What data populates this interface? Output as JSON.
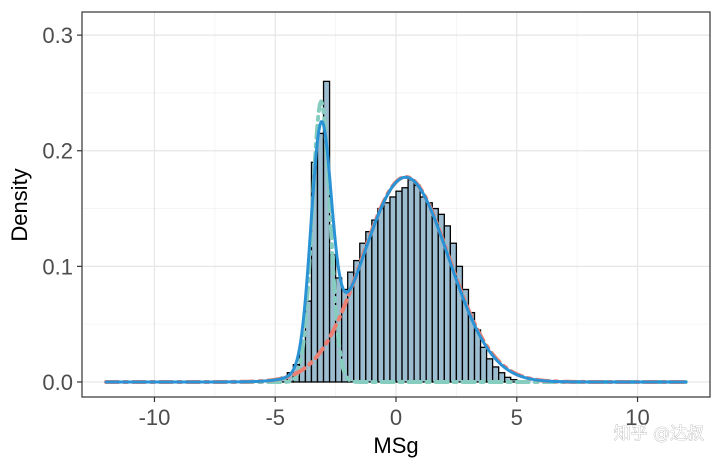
{
  "chart_data": {
    "type": "histogram",
    "title": "",
    "xlabel": "MSg",
    "ylabel": "Density",
    "xlim": [
      -13,
      13
    ],
    "ylim": [
      -0.013,
      0.32
    ],
    "x_ticks": [
      -10,
      -5,
      0,
      5,
      10
    ],
    "x_tick_labels": [
      "-10",
      "-5",
      "0",
      "5",
      "10"
    ],
    "y_ticks": [
      0.0,
      0.1,
      0.2,
      0.3
    ],
    "y_tick_labels": [
      "0.0",
      "0.1",
      "0.2",
      "0.3"
    ],
    "grid": true,
    "histogram": {
      "bin_width": 0.25,
      "fill_color": "#9cbcd0",
      "edge_color": "#000000",
      "bins": [
        {
          "x": -5.0,
          "density": 0.002
        },
        {
          "x": -4.75,
          "density": 0.004
        },
        {
          "x": -4.5,
          "density": 0.008
        },
        {
          "x": -4.25,
          "density": 0.015
        },
        {
          "x": -4.0,
          "density": 0.03
        },
        {
          "x": -3.75,
          "density": 0.07
        },
        {
          "x": -3.5,
          "density": 0.19
        },
        {
          "x": -3.25,
          "density": 0.215
        },
        {
          "x": -3.0,
          "density": 0.26
        },
        {
          "x": -2.75,
          "density": 0.11
        },
        {
          "x": -2.5,
          "density": 0.09
        },
        {
          "x": -2.25,
          "density": 0.08
        },
        {
          "x": -2.0,
          "density": 0.095
        },
        {
          "x": -1.75,
          "density": 0.105
        },
        {
          "x": -1.5,
          "density": 0.12
        },
        {
          "x": -1.25,
          "density": 0.13
        },
        {
          "x": -1.0,
          "density": 0.14
        },
        {
          "x": -0.75,
          "density": 0.15
        },
        {
          "x": -0.5,
          "density": 0.155
        },
        {
          "x": -0.25,
          "density": 0.16
        },
        {
          "x": 0.0,
          "density": 0.165
        },
        {
          "x": 0.25,
          "density": 0.168
        },
        {
          "x": 0.5,
          "density": 0.175
        },
        {
          "x": 0.75,
          "density": 0.17
        },
        {
          "x": 1.0,
          "density": 0.16
        },
        {
          "x": 1.25,
          "density": 0.155
        },
        {
          "x": 1.5,
          "density": 0.15
        },
        {
          "x": 1.75,
          "density": 0.145
        },
        {
          "x": 2.0,
          "density": 0.135
        },
        {
          "x": 2.25,
          "density": 0.12
        },
        {
          "x": 2.5,
          "density": 0.1
        },
        {
          "x": 2.75,
          "density": 0.08
        },
        {
          "x": 3.0,
          "density": 0.06
        },
        {
          "x": 3.25,
          "density": 0.045
        },
        {
          "x": 3.5,
          "density": 0.03
        },
        {
          "x": 3.75,
          "density": 0.02
        },
        {
          "x": 4.0,
          "density": 0.013
        },
        {
          "x": 4.25,
          "density": 0.008
        },
        {
          "x": 4.5,
          "density": 0.004
        },
        {
          "x": 4.75,
          "density": 0.002
        }
      ]
    },
    "curves": [
      {
        "id": "mixture-density",
        "style": "solid",
        "color": "#2a93d5",
        "width": 3,
        "x_range": [
          -12,
          12
        ],
        "components": [
          {
            "w": 0.21,
            "mu": -3.1,
            "sd": 0.42
          },
          {
            "w": 0.79,
            "mu": 0.4,
            "sd": 1.78
          }
        ]
      },
      {
        "id": "component-1",
        "style": "dash-dot",
        "color": "#87cdbf",
        "width": 4,
        "x_range": [
          -12,
          12
        ],
        "components": [
          {
            "w": 0.225,
            "mu": -3.1,
            "sd": 0.37
          }
        ]
      },
      {
        "id": "component-2",
        "style": "dash-dot",
        "color": "#ec7f72",
        "width": 4,
        "x_range": [
          -12,
          12
        ],
        "components": [
          {
            "w": 0.8,
            "mu": 0.4,
            "sd": 1.8
          }
        ]
      }
    ],
    "legend": "none"
  },
  "watermark": "知乎 @达叔"
}
